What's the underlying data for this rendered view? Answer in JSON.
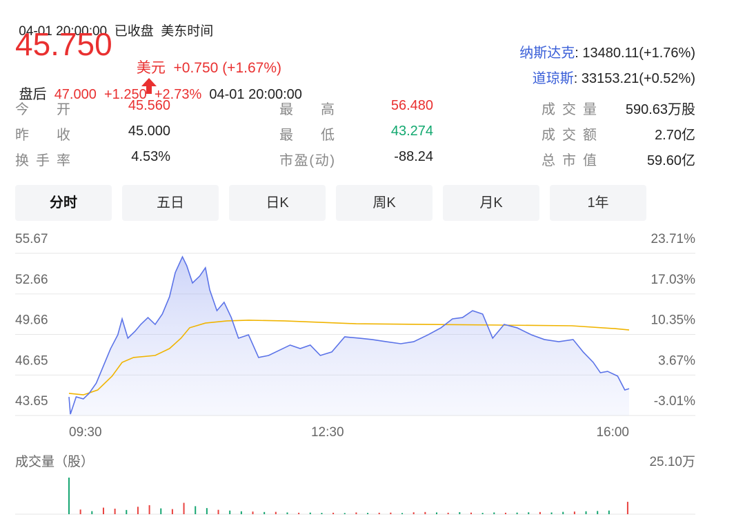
{
  "header": {
    "timestamp": "04-01 20:00:00",
    "status": "已收盘",
    "timezone": "美东时间"
  },
  "quote": {
    "price": "45.750",
    "currency": "美元",
    "change": "+0.750",
    "change_pct": "(+1.67%)",
    "color": "#e93030"
  },
  "indices": [
    {
      "name": "纳斯达克",
      "value": ": 13480.11(+1.76%)"
    },
    {
      "name": "道琼斯",
      "value": ": 33153.21(+0.52%)"
    }
  ],
  "after_hours": {
    "label": "盘后",
    "price": "47.000",
    "change": "+1.250",
    "change_pct": "+2.73%",
    "time": "04-01 20:00:00"
  },
  "stats": {
    "rows": [
      [
        {
          "label": "今 开",
          "value": "45.560",
          "color": "#e93030"
        },
        {
          "label": "最 高",
          "value": "56.480",
          "color": "#e93030"
        },
        {
          "label": "成交量",
          "value": "590.63万股",
          "color": "#222222"
        }
      ],
      [
        {
          "label": "昨 收",
          "value": "45.000",
          "color": "#222222"
        },
        {
          "label": "最 低",
          "value": "43.274",
          "color": "#12a86f"
        },
        {
          "label": "成交额",
          "value": "2.70亿",
          "color": "#222222"
        }
      ],
      [
        {
          "label": "换手率",
          "value": "4.53%",
          "color": "#222222"
        },
        {
          "label": "市盈(动)",
          "value": "-88.24",
          "color": "#222222"
        },
        {
          "label": "总市值",
          "value": "59.60亿",
          "color": "#222222"
        }
      ]
    ]
  },
  "tabs": {
    "items": [
      "分时",
      "五日",
      "日K",
      "周K",
      "月K",
      "1年"
    ],
    "active": 0
  },
  "chart_data": {
    "type": "line",
    "color": "#5b73e8",
    "average_color": "#f0b400",
    "grid": true,
    "x": [
      0,
      1,
      5,
      10,
      14,
      19,
      24,
      29,
      34,
      37,
      41,
      46,
      50,
      55,
      60,
      65,
      70,
      74,
      79,
      82,
      86,
      91,
      95,
      98,
      103,
      108,
      113,
      118,
      125,
      132,
      139,
      146,
      154,
      161,
      168,
      175,
      183,
      192,
      202,
      211,
      221,
      231,
      240,
      250,
      259,
      267,
      274,
      281,
      288,
      295,
      303,
      312,
      322,
      331,
      341,
      351,
      358,
      365,
      370,
      375,
      382,
      387,
      390
    ],
    "values": [
      45.03,
      43.75,
      45.03,
      44.88,
      45.29,
      46.05,
      47.33,
      48.61,
      49.63,
      50.81,
      49.38,
      49.89,
      50.4,
      50.91,
      50.4,
      51.17,
      52.45,
      54.24,
      55.41,
      54.75,
      53.47,
      53.98,
      54.6,
      52.96,
      51.42,
      52.04,
      50.91,
      49.38,
      49.63,
      47.95,
      48.1,
      48.46,
      48.87,
      48.61,
      48.87,
      48.1,
      48.36,
      49.48,
      49.38,
      49.28,
      49.12,
      48.97,
      49.12,
      49.63,
      50.15,
      50.81,
      50.91,
      51.42,
      51.17,
      49.38,
      50.4,
      50.15,
      49.63,
      49.28,
      49.12,
      49.28,
      48.36,
      47.59,
      46.82,
      46.92,
      46.57,
      45.54,
      45.64
    ],
    "average_x": [
      0,
      10,
      20,
      30,
      37,
      45,
      60,
      70,
      78,
      84,
      95,
      110,
      125,
      150,
      200,
      250,
      300,
      350,
      380,
      390
    ],
    "average_values": [
      45.29,
      45.18,
      45.54,
      46.57,
      47.59,
      47.95,
      48.1,
      48.61,
      49.38,
      50.15,
      50.5,
      50.66,
      50.71,
      50.66,
      50.45,
      50.4,
      50.35,
      50.3,
      50.09,
      49.99
    ],
    "xlim": [
      0,
      390
    ],
    "xticks": [
      {
        "value": 0,
        "label": "09:30"
      },
      {
        "value": 180,
        "label": "12:30"
      },
      {
        "value": 390,
        "label": "16:00"
      }
    ],
    "ylim": [
      43.65,
      55.67
    ],
    "yticks": [
      55.67,
      52.66,
      49.66,
      46.65,
      43.65
    ],
    "y2lim": [
      -3.01,
      23.71
    ],
    "y2ticks": [
      {
        "value": 23.71,
        "label": "23.71%"
      },
      {
        "value": 17.03,
        "label": "17.03%"
      },
      {
        "value": 10.35,
        "label": "10.35%"
      },
      {
        "value": 3.67,
        "label": "3.67%"
      },
      {
        "value": -3.01,
        "label": "-3.01%"
      }
    ]
  },
  "volume_chart": {
    "type": "bar",
    "title": "成交量（股）",
    "x": [
      0,
      8,
      16,
      24,
      32,
      40,
      48,
      56,
      64,
      72,
      80,
      88,
      96,
      104,
      112,
      120,
      128,
      136,
      144,
      152,
      160,
      168,
      176,
      184,
      192,
      200,
      208,
      216,
      224,
      232,
      240,
      248,
      256,
      264,
      272,
      280,
      288,
      296,
      304,
      312,
      320,
      328,
      336,
      344,
      352,
      360,
      368,
      376,
      389
    ],
    "values": [
      25.1,
      3.2,
      2.1,
      4.5,
      3.8,
      2.9,
      5.1,
      6.2,
      4.0,
      3.5,
      7.8,
      5.5,
      4.2,
      3.0,
      2.5,
      2.0,
      1.8,
      1.5,
      1.6,
      1.2,
      1.0,
      1.1,
      0.9,
      1.0,
      0.8,
      1.2,
      0.9,
      1.0,
      1.1,
      0.8,
      1.3,
      1.5,
      1.2,
      1.0,
      1.4,
      1.1,
      0.9,
      1.2,
      1.0,
      1.1,
      1.3,
      1.5,
      1.2,
      1.6,
      1.8,
      2.0,
      2.2,
      2.5,
      8.5
    ],
    "colors": [
      "#17a672",
      "#e8423f",
      "#17a672",
      "#e8423f",
      "#e8423f",
      "#17a672",
      "#e8423f",
      "#e8423f",
      "#17a672",
      "#e8423f",
      "#e8423f",
      "#17a672",
      "#17a672",
      "#e8423f",
      "#17a672",
      "#17a672",
      "#e8423f",
      "#17a672",
      "#e8423f",
      "#17a672",
      "#e8423f",
      "#17a672",
      "#17a672",
      "#e8423f",
      "#17a672",
      "#e8423f",
      "#17a672",
      "#e8423f",
      "#e8423f",
      "#17a672",
      "#e8423f",
      "#e8423f",
      "#17a672",
      "#e8423f",
      "#17a672",
      "#e8423f",
      "#17a672",
      "#17a672",
      "#e8423f",
      "#17a672",
      "#17a672",
      "#e8423f",
      "#17a672",
      "#17a672",
      "#e8423f",
      "#17a672",
      "#17a672",
      "#17a672",
      "#e8423f"
    ],
    "ylim": [
      0,
      25.1
    ],
    "yticks": [
      {
        "value": 25.1,
        "label": "25.10万"
      }
    ]
  }
}
